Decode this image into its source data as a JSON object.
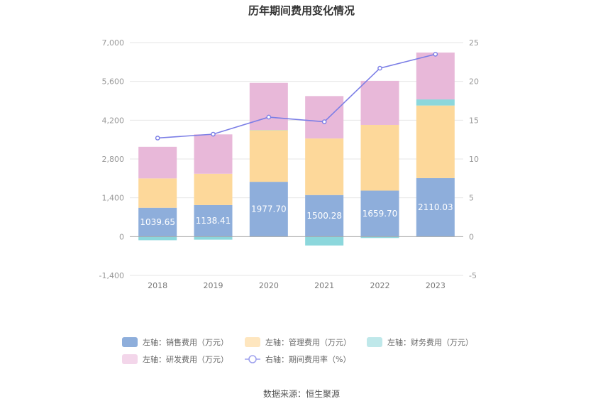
{
  "chart_data": {
    "type": "bar",
    "title": "历年期间费用变化情况",
    "categories": [
      "2018",
      "2019",
      "2020",
      "2021",
      "2022",
      "2023"
    ],
    "left_axis": {
      "min": -1400,
      "max": 7000,
      "ticks": [
        "-1,400",
        "0",
        "1,400",
        "2,800",
        "4,200",
        "5,600",
        "7,000"
      ],
      "tick_values": [
        -1400,
        0,
        1400,
        2800,
        4200,
        5600,
        7000
      ]
    },
    "right_axis": {
      "min": -5,
      "max": 25,
      "ticks": [
        "-5",
        "0",
        "5",
        "10",
        "15",
        "20",
        "25"
      ],
      "tick_values": [
        -5,
        0,
        5,
        10,
        15,
        20,
        25
      ]
    },
    "grid": true,
    "legend_position": "bottom",
    "series": [
      {
        "name": "左轴：销售费用（万元）",
        "kind": "bar",
        "axis": "left",
        "color": "#8eaedb",
        "legend_color": "#8eaedb",
        "values": [
          1039.65,
          1138.41,
          1977.7,
          1500.28,
          1659.7,
          2110.03
        ],
        "labels": [
          "1039.65",
          "1138.41",
          "1977.70",
          "1500.28",
          "1659.70",
          "2110.03"
        ]
      },
      {
        "name": "左轴：管理费用（万元）",
        "kind": "bar",
        "axis": "left",
        "color": "#fdd89a",
        "legend_color": "#fee6bf",
        "values": [
          1060,
          1130,
          1860,
          2040,
          2370,
          2620
        ]
      },
      {
        "name": "左轴：财务费用（万元）",
        "kind": "bar",
        "axis": "left",
        "color": "#8cd7dc",
        "legend_color": "#bfe8ea",
        "values": [
          -130,
          -110,
          10,
          -320,
          -50,
          220
        ]
      },
      {
        "name": "左轴：研发费用（万元）",
        "kind": "bar",
        "axis": "left",
        "color": "#e8b8d9",
        "legend_color": "#f3d6ea",
        "values": [
          1140,
          1420,
          1700,
          1530,
          1590,
          1690
        ]
      },
      {
        "name": "右轴：期间费用率（%）",
        "kind": "line",
        "axis": "right",
        "color": "#7b7ee6",
        "legend_color": "#9fa2ee",
        "values": [
          12.7,
          13.2,
          15.4,
          14.8,
          21.7,
          23.5
        ]
      }
    ]
  },
  "source": "数据来源：恒生聚源"
}
